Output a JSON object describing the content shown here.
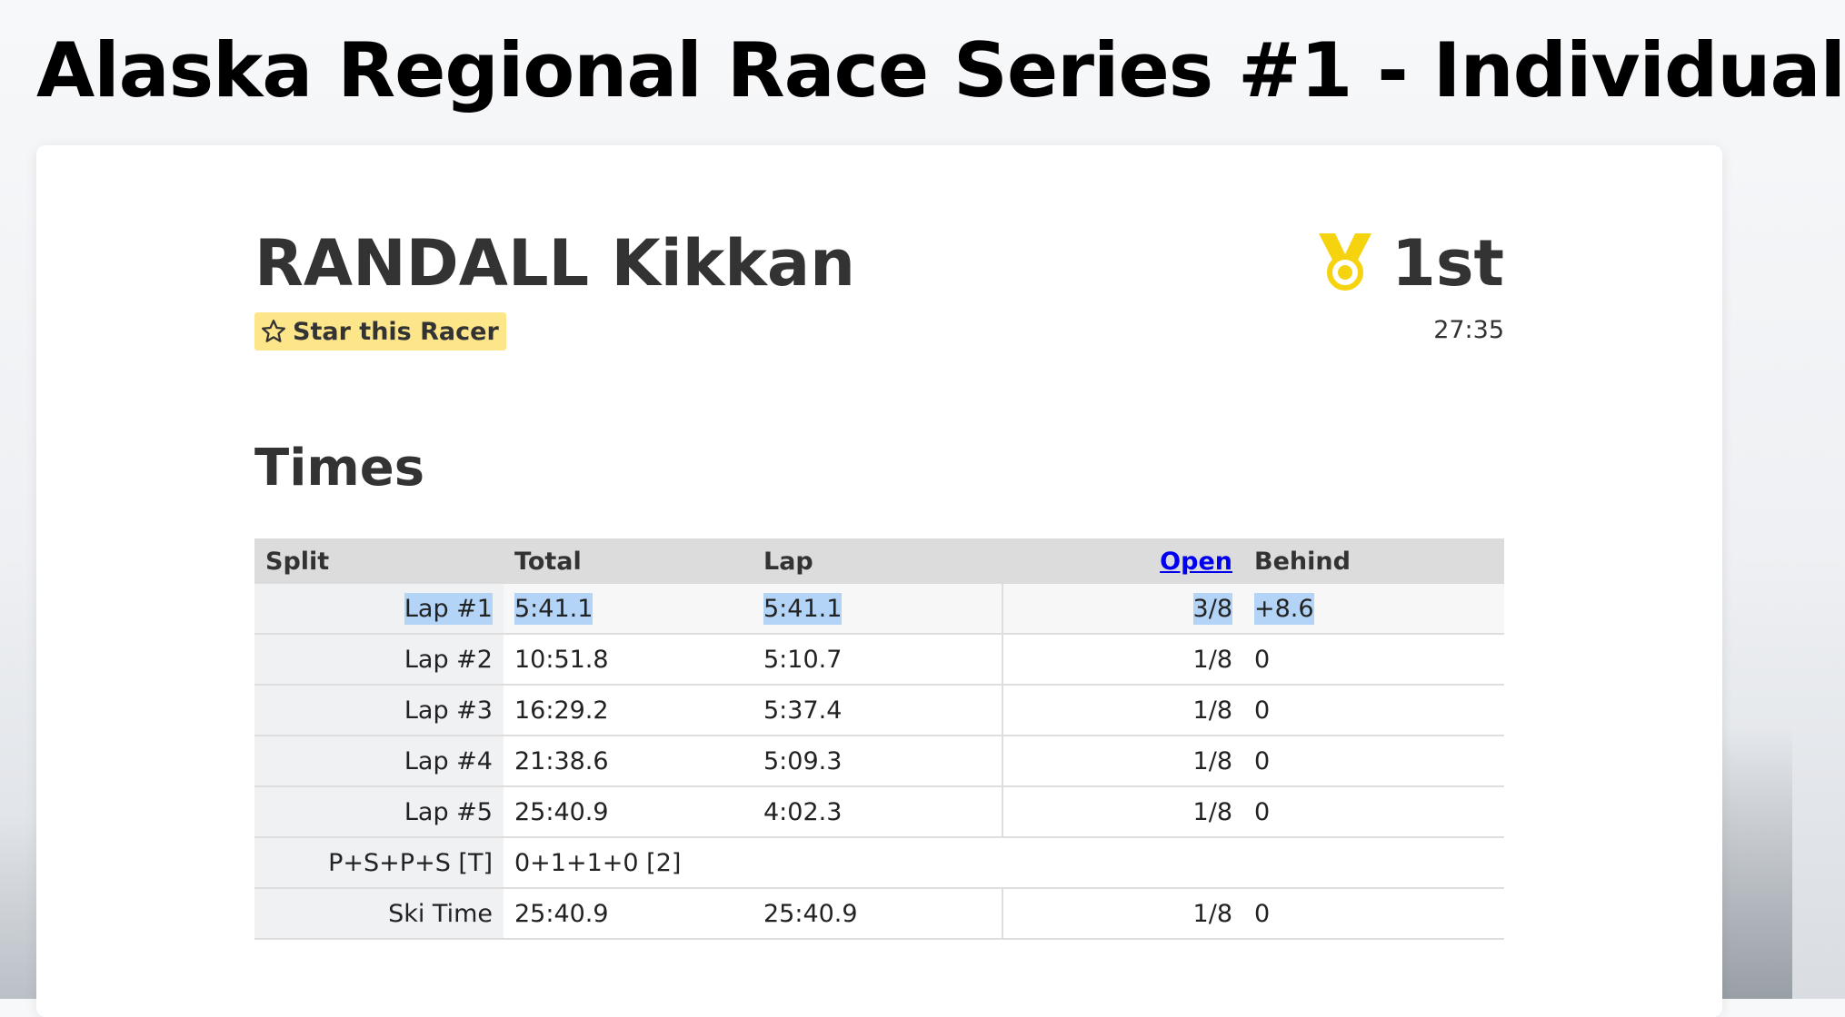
{
  "page": {
    "title": "Alaska Regional Race Series #1 - Individual"
  },
  "racer": {
    "name": "RANDALL Kikkan",
    "star_label": "Star this Racer",
    "place": "1st",
    "final_time": "27:35",
    "medal_color": "#f5d30f"
  },
  "times": {
    "heading": "Times",
    "columns": {
      "split": "Split",
      "total": "Total",
      "lap": "Lap",
      "open": "Open",
      "behind": "Behind"
    },
    "rows": [
      {
        "split": "Lap #1",
        "total": "5:41.1",
        "lap": "5:41.1",
        "rank": "3/8",
        "behind": "+8.6"
      },
      {
        "split": "Lap #2",
        "total": "10:51.8",
        "lap": "5:10.7",
        "rank": "1/8",
        "behind": "0"
      },
      {
        "split": "Lap #3",
        "total": "16:29.2",
        "lap": "5:37.4",
        "rank": "1/8",
        "behind": "0"
      },
      {
        "split": "Lap #4",
        "total": "21:38.6",
        "lap": "5:09.3",
        "rank": "1/8",
        "behind": "0"
      },
      {
        "split": "Lap #5",
        "total": "25:40.9",
        "lap": "4:02.3",
        "rank": "1/8",
        "behind": "0"
      },
      {
        "split": "P+S+P+S [T]",
        "total": "0+1+1+0 [2]"
      },
      {
        "split": "Ski Time",
        "total": "25:40.9",
        "lap": "25:40.9",
        "rank": "1/8",
        "behind": "0"
      }
    ]
  },
  "colors": {
    "highlight": "#b3d4f7",
    "star_button_bg": "#fde58a",
    "link": "#0000ee"
  }
}
